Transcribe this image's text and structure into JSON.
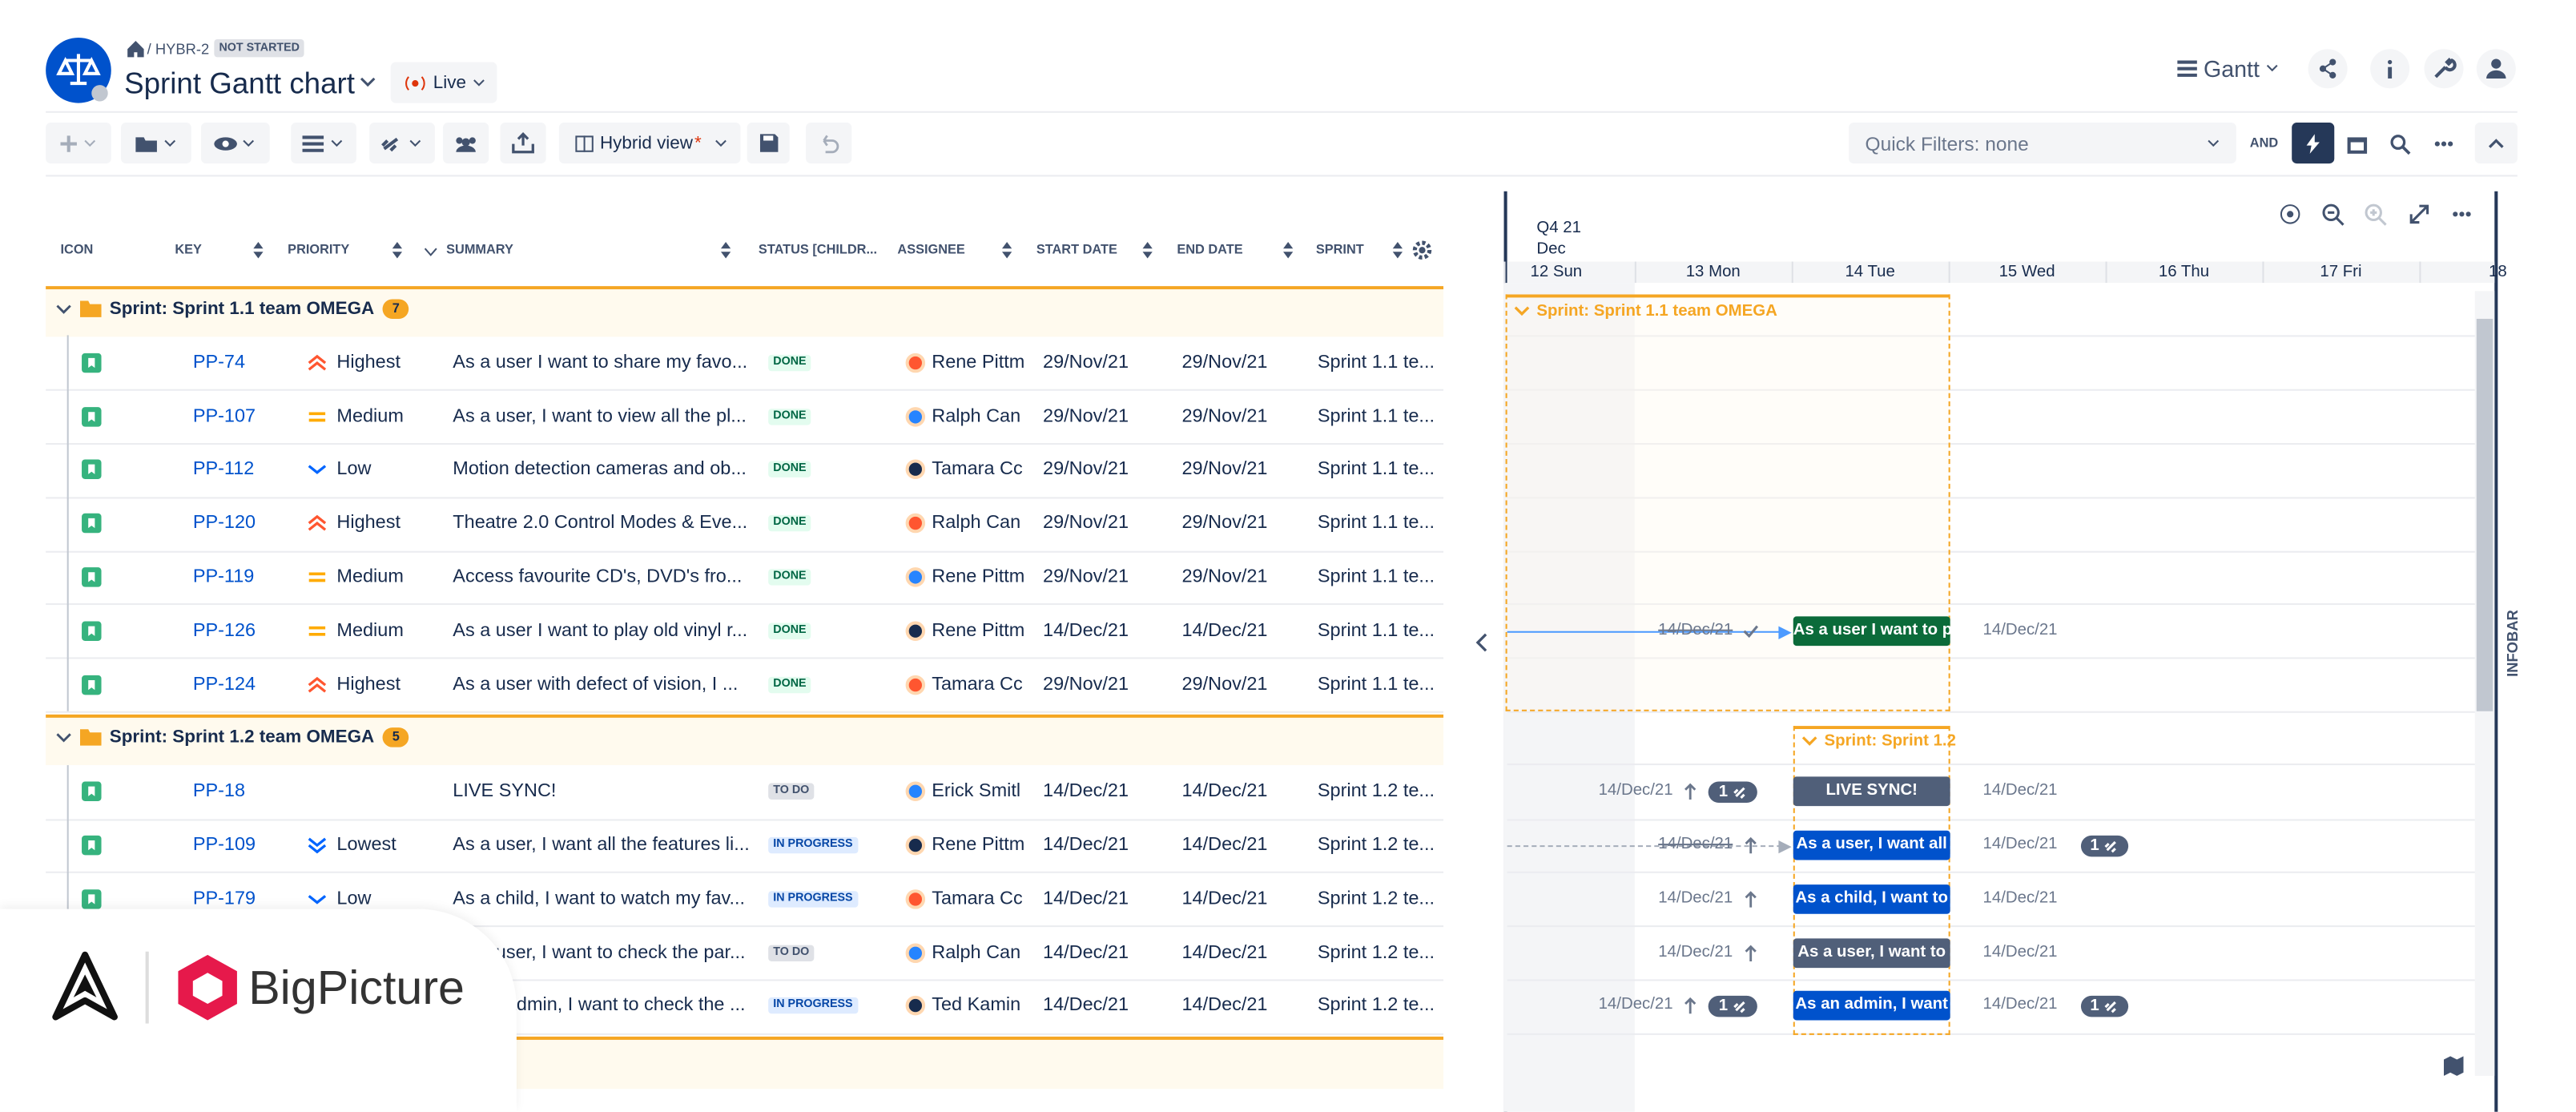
{
  "header": {
    "breadcrumb": "/ HYBR-2",
    "status": "NOT STARTED",
    "title": "Sprint Gantt chart",
    "live": "Live",
    "view_menu": "Gantt"
  },
  "toolbar": {
    "view": "Hybrid view",
    "unsaved": "*",
    "quick_filters": "Quick Filters: none",
    "operator": "AND"
  },
  "table": {
    "columns": [
      "ICON",
      "KEY",
      "PRIORITY",
      "SUMMARY",
      "STATUS [CHILDR...",
      "ASSIGNEE",
      "START DATE",
      "END DATE",
      "SPRINT"
    ],
    "groups": [
      {
        "label": "Sprint: Sprint 1.1 team OMEGA",
        "count": 7,
        "rows": [
          {
            "key": "PP-74",
            "priority": "Highest",
            "summary": "As a user I want to share my favo...",
            "status": "DONE",
            "assignee": "Rene Pittm",
            "start": "29/Nov/21",
            "end": "29/Nov/21",
            "sprint": "Sprint 1.1 te..."
          },
          {
            "key": "PP-107",
            "priority": "Medium",
            "summary": "As a user, I want to view all the pl...",
            "status": "DONE",
            "assignee": "Ralph Can",
            "start": "29/Nov/21",
            "end": "29/Nov/21",
            "sprint": "Sprint 1.1 te..."
          },
          {
            "key": "PP-112",
            "priority": "Low",
            "summary": "Motion detection cameras and ob...",
            "status": "DONE",
            "assignee": "Tamara Cc",
            "start": "29/Nov/21",
            "end": "29/Nov/21",
            "sprint": "Sprint 1.1 te..."
          },
          {
            "key": "PP-120",
            "priority": "Highest",
            "summary": "Theatre 2.0 Control Modes & Eve...",
            "status": "DONE",
            "assignee": "Ralph Can",
            "start": "29/Nov/21",
            "end": "29/Nov/21",
            "sprint": "Sprint 1.1 te..."
          },
          {
            "key": "PP-119",
            "priority": "Medium",
            "summary": "Access favourite CD's, DVD's fro...",
            "status": "DONE",
            "assignee": "Rene Pittm",
            "start": "29/Nov/21",
            "end": "29/Nov/21",
            "sprint": "Sprint 1.1 te..."
          },
          {
            "key": "PP-126",
            "priority": "Medium",
            "summary": "As a user I want to play old vinyl r...",
            "status": "DONE",
            "assignee": "Rene Pittm",
            "start": "14/Dec/21",
            "end": "14/Dec/21",
            "sprint": "Sprint 1.1 te..."
          },
          {
            "key": "PP-124",
            "priority": "Highest",
            "summary": "As a user with defect of vision, I ...",
            "status": "DONE",
            "assignee": "Tamara Cc",
            "start": "29/Nov/21",
            "end": "29/Nov/21",
            "sprint": "Sprint 1.1 te..."
          }
        ]
      },
      {
        "label": "Sprint: Sprint 1.2 team OMEGA",
        "count": 5,
        "rows": [
          {
            "key": "PP-18",
            "summary": "LIVE SYNC!",
            "status": "TO DO",
            "assignee": "Erick Smitl",
            "start": "14/Dec/21",
            "end": "14/Dec/21",
            "sprint": "Sprint 1.2 te..."
          },
          {
            "key": "PP-109",
            "priority": "Lowest",
            "summary": "As a user, I want all the features li...",
            "status": "IN PROGRESS",
            "assignee": "Rene Pittm",
            "start": "14/Dec/21",
            "end": "14/Dec/21",
            "sprint": "Sprint 1.2 te..."
          },
          {
            "key": "PP-179",
            "priority": "Low",
            "summary": "As a child, I want to watch my fav...",
            "status": "IN PROGRESS",
            "assignee": "Tamara Cc",
            "start": "14/Dec/21",
            "end": "14/Dec/21",
            "sprint": "Sprint 1.2 te..."
          },
          {
            "summary": "As a user, I want to check the par...",
            "status": "TO DO",
            "assignee": "Ralph Can",
            "start": "14/Dec/21",
            "end": "14/Dec/21",
            "sprint": "Sprint 1.2 te..."
          },
          {
            "summary": "As an admin, I want to check the ...",
            "status": "IN PROGRESS",
            "assignee": "Ted Kamin",
            "start": "14/Dec/21",
            "end": "14/Dec/21",
            "sprint": "Sprint 1.2 te..."
          }
        ]
      }
    ]
  },
  "gantt": {
    "quarter": "Q4 21",
    "month": "Dec",
    "days": [
      "12 Sun",
      "13 Mon",
      "14 Tue",
      "15 Wed",
      "16 Thu",
      "17 Fri",
      "18"
    ],
    "sprint_labels": [
      "Sprint: Sprint 1.1 team OMEGA",
      "Sprint: Sprint 1.2"
    ],
    "bars": [
      {
        "label": "As a user I want to p",
        "color": "#0b6b3a",
        "left_date": "14/Dec/21",
        "right_date": "14/Dec/21"
      },
      {
        "label": "LIVE SYNC!",
        "color": "#505f79",
        "left_date": "14/Dec/21",
        "left_links": 1,
        "right_date": "14/Dec/21"
      },
      {
        "label": "As a user, I want all",
        "color": "#0052cc",
        "left_date": "14/Dec/21",
        "right_date": "14/Dec/21",
        "right_links": 1
      },
      {
        "label": "As a child, I want to",
        "color": "#0052cc",
        "left_date": "14/Dec/21",
        "right_date": "14/Dec/21"
      },
      {
        "label": "As a user, I want to",
        "color": "#505f79",
        "left_date": "14/Dec/21",
        "right_date": "14/Dec/21"
      },
      {
        "label": "As an admin, I want",
        "color": "#0052cc",
        "left_date": "14/Dec/21",
        "left_links": 1,
        "right_date": "14/Dec/21",
        "right_links": 1
      }
    ]
  },
  "infobar": "INFOBAR",
  "logo": "BigPicture"
}
